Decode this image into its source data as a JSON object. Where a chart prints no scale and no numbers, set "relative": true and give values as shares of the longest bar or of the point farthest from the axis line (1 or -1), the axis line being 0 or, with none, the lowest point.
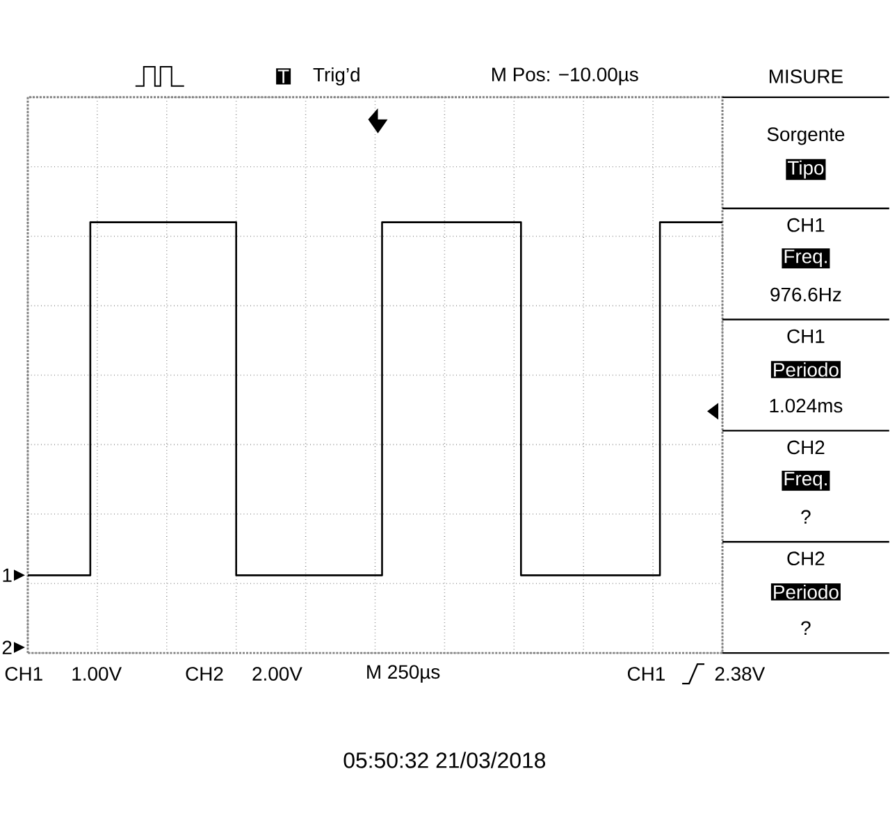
{
  "chart_data": [
    {
      "type": "step",
      "relative": true,
      "color": "#000000",
      "grid": true,
      "categories": [
        null,
        null,
        null,
        null,
        null,
        null,
        null,
        null,
        null,
        null,
        null,
        null,
        null,
        null,
        null,
        null,
        null,
        null,
        null,
        null,
        null,
        null,
        null,
        null,
        null,
        null,
        null,
        null,
        null,
        null,
        null,
        null,
        null,
        null,
        null,
        null,
        null,
        null,
        null,
        null,
        null,
        null,
        null,
        null,
        null,
        null,
        null,
        null,
        null,
        null,
        null,
        null,
        null,
        null,
        null,
        null,
        null,
        null,
        null,
        null,
        null,
        null,
        null,
        null,
        null,
        null,
        null,
        null,
        null,
        null,
        null,
        null,
        null,
        null,
        null,
        null,
        null,
        null,
        null,
        null,
        null,
        null,
        null,
        null,
        null,
        null,
        null,
        null,
        null,
        null,
        null,
        null,
        null,
        null,
        null,
        null,
        null,
        null,
        null,
        null,
        null
      ],
      "values": [
        0,
        0,
        0,
        0,
        0,
        0,
        0,
        0,
        0,
        1,
        1,
        1,
        1,
        1,
        1,
        1,
        1,
        1,
        1,
        1,
        1,
        1,
        1,
        1,
        1,
        1,
        1,
        1,
        1,
        1,
        0,
        0,
        0,
        0,
        0,
        0,
        0,
        0,
        0,
        0,
        0,
        0,
        0,
        0,
        0,
        0,
        0,
        0,
        0,
        0,
        0,
        1,
        1,
        1,
        1,
        1,
        1,
        1,
        1,
        1,
        1,
        1,
        1,
        1,
        1,
        1,
        1,
        1,
        1,
        1,
        1,
        0,
        0,
        0,
        0,
        0,
        0,
        0,
        0,
        0,
        0,
        0,
        0,
        0,
        0,
        0,
        0,
        0,
        0,
        0,
        0,
        1,
        1,
        1,
        1,
        1,
        1,
        1,
        1,
        1,
        1
      ],
      "annotations": [
        "T",
        "Trig’d",
        "M Pos: −10.00µs",
        "CH1",
        "1.00V",
        "CH2",
        "2.00V",
        "M 250µs",
        "CH1",
        "2.38V",
        "1",
        "2",
        "05:50:32   21/03/2018"
      ]
    },
    {
      "type": "other",
      "title": "MISURE",
      "annotations": [
        "Sorgente",
        "Tipo",
        "CH1",
        "Freq.",
        "976.6Hz",
        "CH1",
        "Periodo",
        "1.024ms",
        "CH2",
        "Freq.",
        "?",
        "CH2",
        "Periodo",
        "?"
      ]
    }
  ]
}
